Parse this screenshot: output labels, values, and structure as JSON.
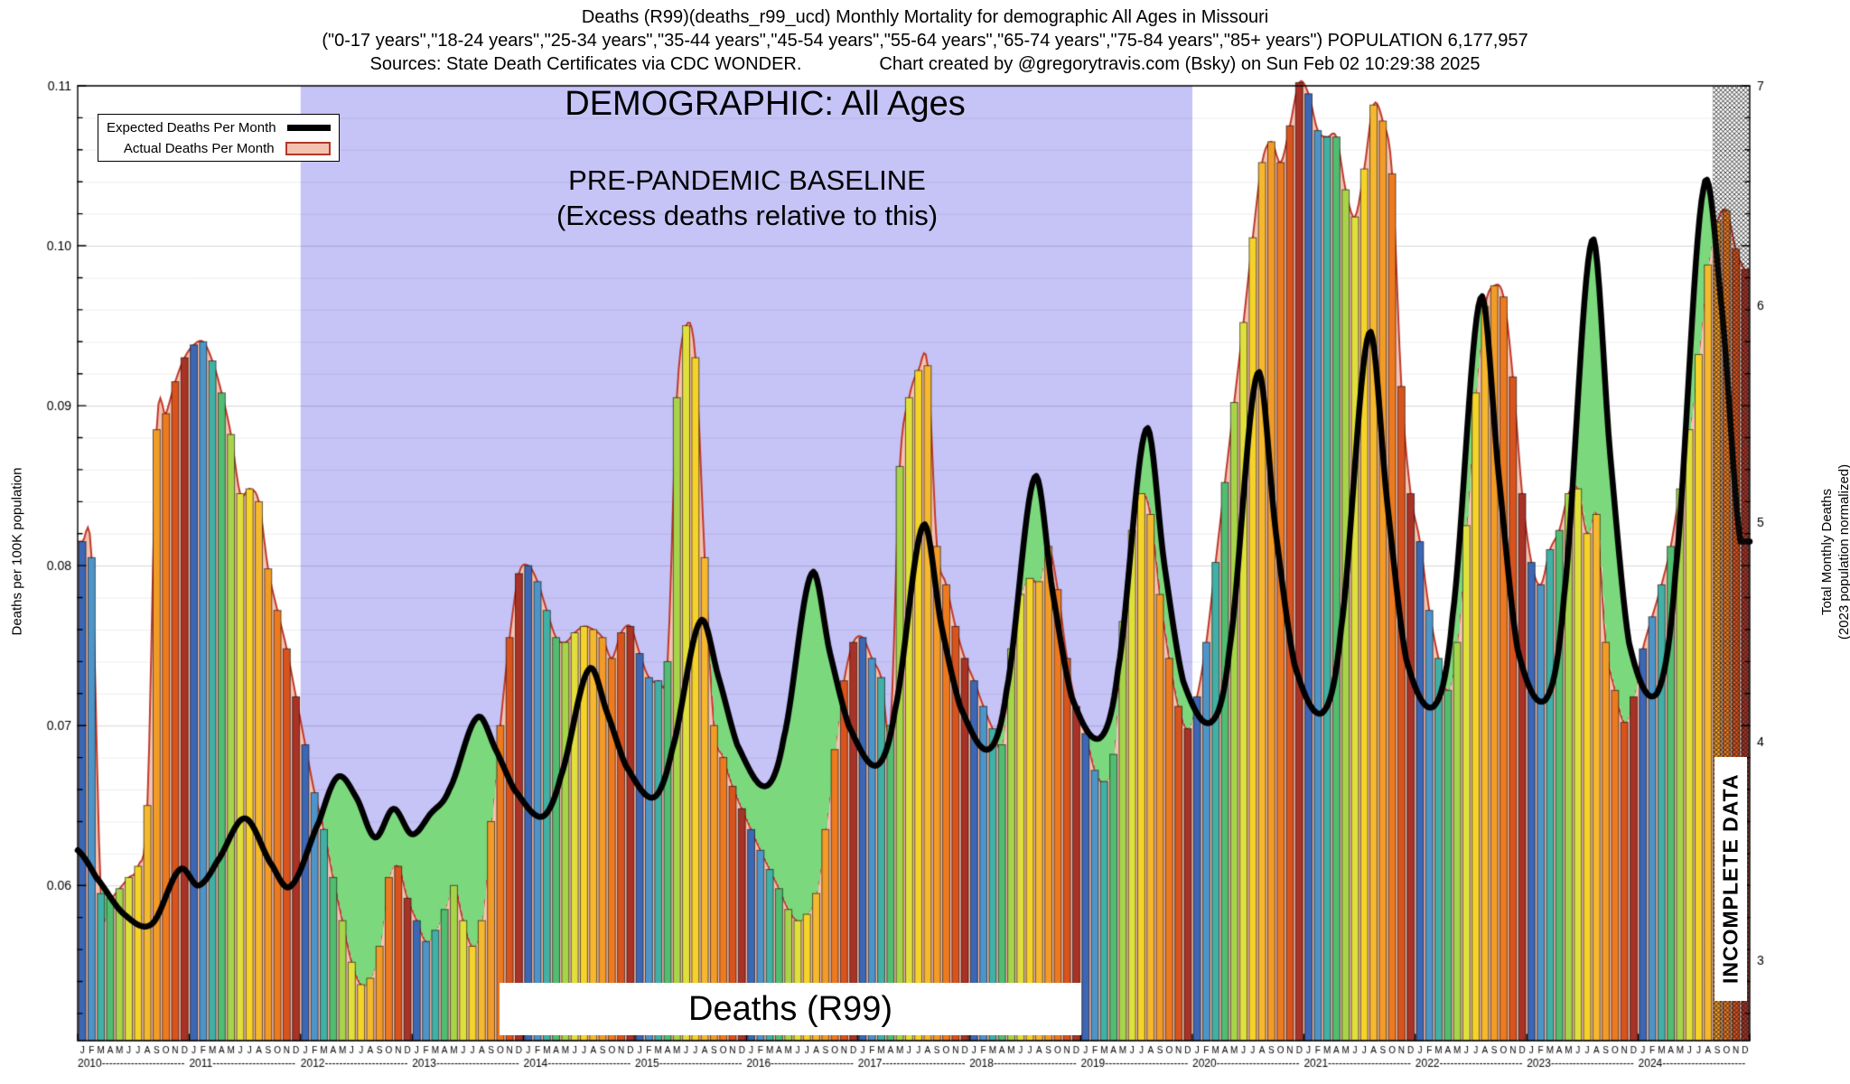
{
  "chart_data": {
    "type": "bar+line",
    "title": "Deaths (R99)(deaths_r99_ucd) Monthly Mortality for demographic All Ages in Missouri",
    "subtitle": "(\"0-17 years\",\"18-24 years\",\"25-34 years\",\"35-44 years\",\"45-54 years\",\"55-64 years\",\"65-74 years\",\"75-84 years\",\"85+ years\") POPULATION 6,177,957",
    "source_line": "Sources: State Death Certificates via CDC WONDER.",
    "credit_line": "Chart created by @gregorytravis.com (Bsky) on Sun Feb 02 10:29:38 2025",
    "demographic_heading": "DEMOGRAPHIC: All Ages",
    "baseline_heading": "PRE-PANDEMIC BASELINE",
    "baseline_subheading": "(Excess deaths relative to this)",
    "bottom_label": "Deaths (R99)",
    "incomplete_label": "INCOMPLETE DATA",
    "ylabel_left": "Deaths per 100K population",
    "ylabel_right": [
      "Total Monthly Deaths",
      "(2023 population normalized)"
    ],
    "legend": {
      "expected": "Expected Deaths Per Month",
      "actual": "Actual Deaths Per Month"
    },
    "x": {
      "start_year": 2010,
      "end_year": 2024,
      "month_letters": "JFMAMJJASOND"
    },
    "ylim_left": [
      0.0503,
      0.11
    ],
    "left_ticks": [
      0.06,
      0.07,
      0.08,
      0.09,
      0.1,
      0.11
    ],
    "right_ticks": [
      [
        3,
        0.0553
      ],
      [
        4,
        0.069
      ],
      [
        5,
        0.0827
      ],
      [
        6,
        0.0963
      ],
      [
        7,
        0.11
      ]
    ],
    "grid_step": 0.002,
    "baseline_region_month_range": [
      24,
      120
    ],
    "incomplete_from_month": 176,
    "series": [
      {
        "name": "Actual Deaths Per Month",
        "type": "bars+area",
        "values_per_100k_by_year": [
          [
            0.0815,
            0.0805,
            0.0595,
            0.0592,
            0.0598,
            0.0605,
            0.0612,
            0.065,
            0.0885,
            0.0895,
            0.0915,
            0.093
          ],
          [
            0.0938,
            0.094,
            0.0928,
            0.0908,
            0.0882,
            0.0845,
            0.0848,
            0.084,
            0.0798,
            0.0772,
            0.0748,
            0.0718
          ],
          [
            0.0688,
            0.0658,
            0.0635,
            0.0605,
            0.0578,
            0.0552,
            0.0538,
            0.0542,
            0.0562,
            0.0605,
            0.0612,
            0.0592
          ],
          [
            0.0578,
            0.0565,
            0.0572,
            0.0585,
            0.06,
            0.0578,
            0.0562,
            0.0578,
            0.064,
            0.07,
            0.0755,
            0.0795
          ],
          [
            0.08,
            0.079,
            0.0772,
            0.0755,
            0.0752,
            0.0758,
            0.0762,
            0.076,
            0.0755,
            0.0742,
            0.0758,
            0.0762
          ],
          [
            0.0745,
            0.073,
            0.0728,
            0.074,
            0.0905,
            0.095,
            0.093,
            0.0805,
            0.07,
            0.068,
            0.0662,
            0.0648
          ],
          [
            0.0635,
            0.0622,
            0.061,
            0.0598,
            0.0585,
            0.0578,
            0.0582,
            0.0595,
            0.0635,
            0.0685,
            0.0728,
            0.0752
          ],
          [
            0.0755,
            0.0742,
            0.073,
            0.07,
            0.0862,
            0.0905,
            0.0922,
            0.0925,
            0.0812,
            0.0788,
            0.0762,
            0.0742
          ],
          [
            0.0728,
            0.0712,
            0.0698,
            0.0688,
            0.0748,
            0.0782,
            0.0792,
            0.079,
            0.0812,
            0.0785,
            0.0742,
            0.0712
          ],
          [
            0.0695,
            0.0672,
            0.0665,
            0.0682,
            0.0765,
            0.0822,
            0.0845,
            0.0832,
            0.0782,
            0.0742,
            0.0712,
            0.0698
          ],
          [
            0.0718,
            0.0752,
            0.0802,
            0.0852,
            0.0902,
            0.0952,
            0.1005,
            0.1052,
            0.1065,
            0.1052,
            0.1075,
            0.1102
          ],
          [
            0.1095,
            0.1072,
            0.1068,
            0.1068,
            0.1035,
            0.1018,
            0.1048,
            0.1088,
            0.1078,
            0.1045,
            0.0912,
            0.0845
          ],
          [
            0.0815,
            0.0772,
            0.0742,
            0.0722,
            0.0752,
            0.0825,
            0.0908,
            0.0962,
            0.0975,
            0.0968,
            0.0918,
            0.0845
          ],
          [
            0.0802,
            0.0788,
            0.081,
            0.0822,
            0.0845,
            0.0848,
            0.082,
            0.0832,
            0.0752,
            0.0722,
            0.0702,
            0.0718
          ],
          [
            0.0748,
            0.0768,
            0.0788,
            0.0812,
            0.0848,
            0.0885,
            0.0932,
            0.0988,
            0.1015,
            0.1022,
            0.0998,
            0.0985
          ]
        ]
      },
      {
        "name": "Expected Deaths Per Month",
        "type": "line",
        "control_points_month_value": [
          [
            0,
            0.0622
          ],
          [
            2,
            0.0605
          ],
          [
            5,
            0.0582
          ],
          [
            8,
            0.0576
          ],
          [
            11,
            0.061
          ],
          [
            13,
            0.06
          ],
          [
            15,
            0.0615
          ],
          [
            18,
            0.0642
          ],
          [
            21,
            0.0612
          ],
          [
            23,
            0.06
          ],
          [
            26,
            0.064
          ],
          [
            28,
            0.0668
          ],
          [
            30,
            0.0655
          ],
          [
            32,
            0.063
          ],
          [
            34,
            0.0648
          ],
          [
            36,
            0.0632
          ],
          [
            38,
            0.0645
          ],
          [
            40,
            0.066
          ],
          [
            43,
            0.0705
          ],
          [
            45,
            0.0685
          ],
          [
            47,
            0.066
          ],
          [
            50,
            0.0643
          ],
          [
            52,
            0.0668
          ],
          [
            55,
            0.0735
          ],
          [
            57,
            0.0708
          ],
          [
            59,
            0.0675
          ],
          [
            62,
            0.0655
          ],
          [
            64,
            0.0685
          ],
          [
            67,
            0.0765
          ],
          [
            69,
            0.073
          ],
          [
            71,
            0.0688
          ],
          [
            74,
            0.0662
          ],
          [
            76,
            0.0692
          ],
          [
            79,
            0.0795
          ],
          [
            81,
            0.0745
          ],
          [
            83,
            0.07
          ],
          [
            86,
            0.0675
          ],
          [
            88,
            0.071
          ],
          [
            91,
            0.0825
          ],
          [
            93,
            0.0762
          ],
          [
            95,
            0.0712
          ],
          [
            98,
            0.0685
          ],
          [
            100,
            0.0722
          ],
          [
            103,
            0.0855
          ],
          [
            105,
            0.0782
          ],
          [
            107,
            0.0718
          ],
          [
            110,
            0.0692
          ],
          [
            112,
            0.0735
          ],
          [
            115,
            0.0885
          ],
          [
            117,
            0.08
          ],
          [
            119,
            0.0728
          ],
          [
            122,
            0.0702
          ],
          [
            124,
            0.0748
          ],
          [
            127,
            0.092
          ],
          [
            129,
            0.082
          ],
          [
            131,
            0.0738
          ],
          [
            134,
            0.0708
          ],
          [
            136,
            0.076
          ],
          [
            139,
            0.0945
          ],
          [
            141,
            0.0838
          ],
          [
            143,
            0.0742
          ],
          [
            146,
            0.0712
          ],
          [
            148,
            0.0768
          ],
          [
            151,
            0.0967
          ],
          [
            153,
            0.0855
          ],
          [
            155,
            0.0748
          ],
          [
            158,
            0.0716
          ],
          [
            160,
            0.078
          ],
          [
            163,
            0.1003
          ],
          [
            165,
            0.0868
          ],
          [
            167,
            0.0752
          ],
          [
            170,
            0.072
          ],
          [
            172,
            0.0795
          ],
          [
            175,
            0.1035
          ],
          [
            177,
            0.096
          ],
          [
            179,
            0.0815
          ]
        ]
      }
    ],
    "colors": {
      "baseline_region": "#c6c3f6",
      "excess_green": "#7cd87c",
      "actual_fill": "#f6c2b0",
      "actual_edge": "#c0392b",
      "expected_line": "#000000",
      "palette_by_month": [
        "#3c67b5",
        "#4d94c9",
        "#41b0a6",
        "#52bd71",
        "#a8d44a",
        "#e0e03c",
        "#f5d329",
        "#f5b82e",
        "#f29b27",
        "#ed7a1f",
        "#d9531d",
        "#a93226"
      ]
    }
  }
}
